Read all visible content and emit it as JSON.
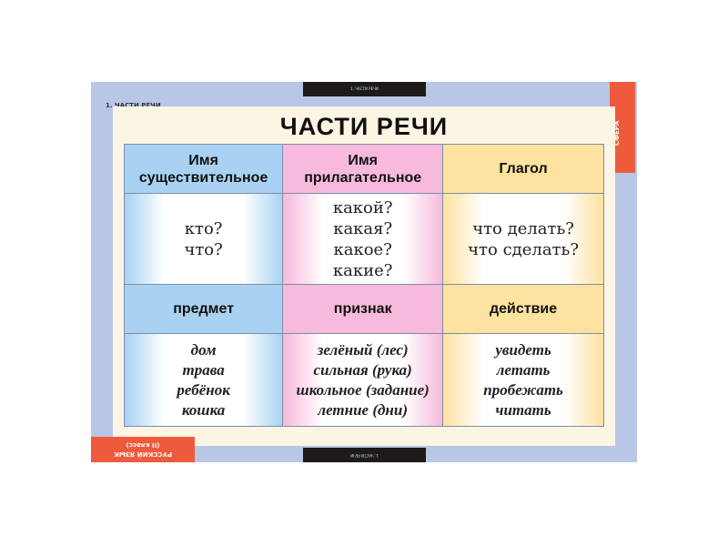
{
  "header_bar": "1. ЧАСТИ РЕЧИ",
  "footer_bar": "1. ЧАСТИ РЕЧИ",
  "corner_label": "1. ЧАСТИ РЕЧИ",
  "publisher": "СФЕРА",
  "series_label": {
    "line1": "РУССКИЙ ЯЗЫК",
    "line2": "(II класс)"
  },
  "title": "ЧАСТИ РЕЧИ",
  "colors": {
    "noun": "#a9d2f2",
    "adjective": "#f7badc",
    "verb": "#fde2a0",
    "board": "#b8c7e6",
    "accent": "#ee5a3c"
  },
  "columns": [
    {
      "header": [
        "Имя",
        "существительное"
      ],
      "questions": [
        "кто?",
        "что?"
      ],
      "meaning": "предмет",
      "examples": [
        "дом",
        "трава",
        "ребёнок",
        "кошка"
      ]
    },
    {
      "header": [
        "Имя",
        "прилагательное"
      ],
      "questions": [
        "какой?",
        "какая?",
        "какое?",
        "какие?"
      ],
      "meaning": "признак",
      "examples": [
        "зелёный (лес)",
        "сильная (рука)",
        "школьное (задание)",
        "летние (дни)"
      ]
    },
    {
      "header": [
        "Глагол"
      ],
      "questions": [
        "что делать?",
        "что сделать?"
      ],
      "meaning": "действие",
      "examples": [
        "увидеть",
        "летать",
        "пробежать",
        "читать"
      ]
    }
  ]
}
